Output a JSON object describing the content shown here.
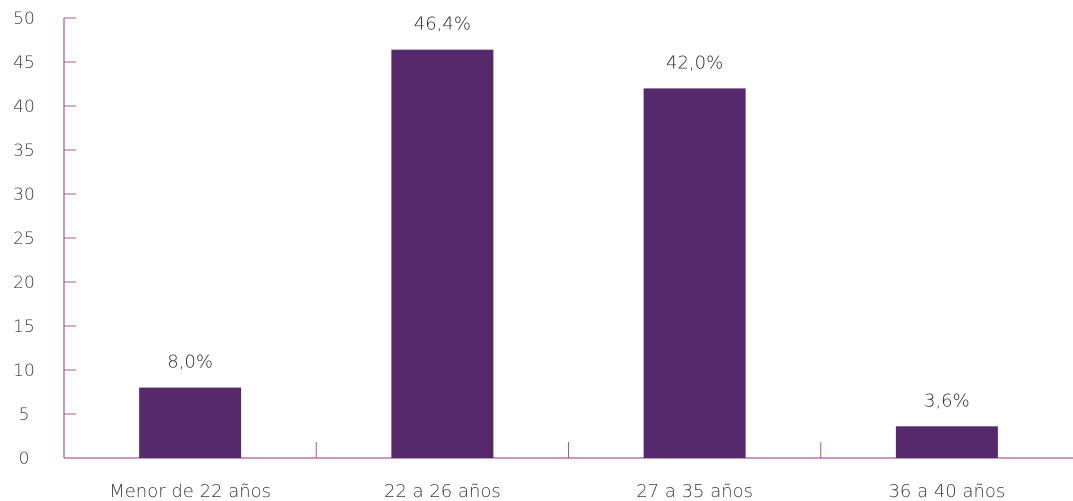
{
  "chart_data": {
    "type": "bar",
    "categories": [
      "Menor de 22 años",
      "22 a 26 años",
      "27 a 35 años",
      "36 a 40 años"
    ],
    "values": [
      8.0,
      46.4,
      42.0,
      3.6
    ],
    "data_labels": [
      "8,0%",
      "46,4%",
      "42,0%",
      "3,6%"
    ],
    "yticks": [
      "0",
      "5",
      "10",
      "15",
      "20",
      "25",
      "30",
      "35",
      "40",
      "45",
      "50"
    ],
    "ylim": [
      0,
      50
    ],
    "title": "",
    "xlabel": "",
    "ylabel": "",
    "grid": false,
    "colors": {
      "bar": "#55296b",
      "axis": "#a0579a"
    }
  }
}
